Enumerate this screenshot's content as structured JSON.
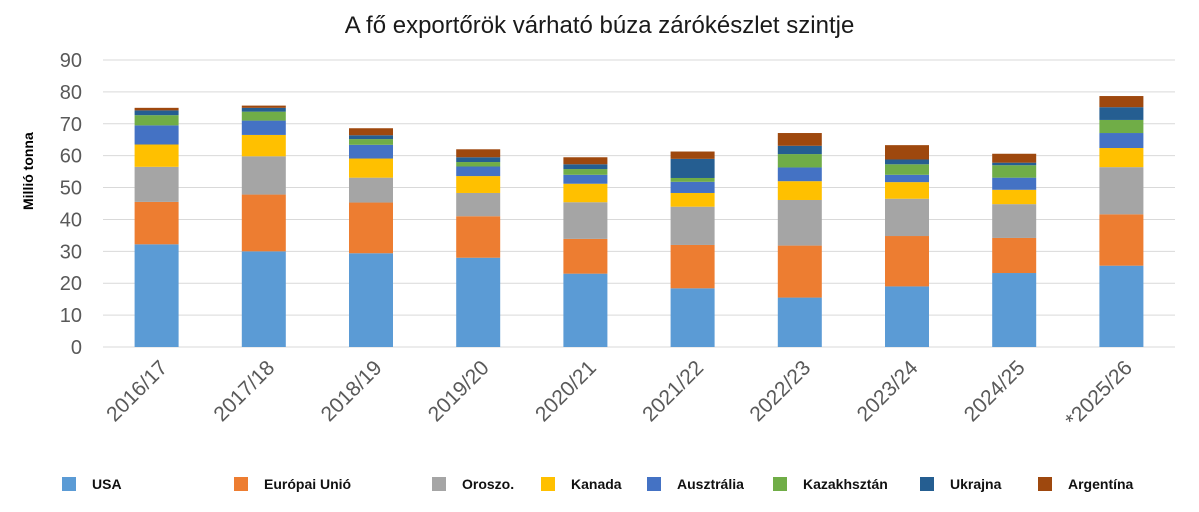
{
  "chart_data": {
    "type": "bar",
    "stacked": true,
    "title": "A fő exportőrök várható búza zárókészlet szintje",
    "xlabel": "",
    "ylabel": "Millió tonna",
    "ylim": [
      0,
      90
    ],
    "yticks": [
      0,
      10,
      20,
      30,
      40,
      50,
      60,
      70,
      80,
      90
    ],
    "grid": true,
    "legend_position": "bottom",
    "categories": [
      "2016/17",
      "2017/18",
      "2018/19",
      "2019/20",
      "2020/21",
      "2021/22",
      "2022/23",
      "2023/24",
      "2024/25",
      "*2025/26"
    ],
    "series": [
      {
        "name": "USA",
        "color": "#5b9bd5",
        "values": [
          32.2,
          30.0,
          29.4,
          28.0,
          23.0,
          18.4,
          15.5,
          19.0,
          23.2,
          25.5
        ]
      },
      {
        "name": "Európai Unió",
        "color": "#ed7d31",
        "values": [
          13.3,
          17.8,
          15.9,
          13.0,
          10.9,
          13.6,
          16.3,
          15.8,
          11.0,
          16.1
        ]
      },
      {
        "name": "Oroszo.",
        "color": "#a5a5a5",
        "values": [
          11.0,
          12.0,
          7.8,
          7.3,
          11.5,
          12.0,
          14.3,
          11.7,
          10.6,
          14.8
        ]
      },
      {
        "name": "Kanada",
        "color": "#ffc000",
        "values": [
          7.0,
          6.7,
          6.0,
          5.3,
          5.8,
          4.3,
          5.9,
          5.2,
          4.5,
          6.0
        ]
      },
      {
        "name": "Ausztrália",
        "color": "#4472c4",
        "values": [
          6.0,
          4.5,
          4.3,
          3.0,
          2.8,
          3.5,
          4.3,
          2.3,
          3.8,
          4.7
        ]
      },
      {
        "name": "Kazakhsztán",
        "color": "#70ad47",
        "values": [
          3.2,
          2.8,
          1.8,
          1.4,
          1.8,
          1.2,
          4.2,
          3.3,
          3.9,
          4.1
        ]
      },
      {
        "name": "Ukrajna",
        "color": "#255e91",
        "values": [
          1.5,
          1.2,
          1.2,
          1.5,
          1.5,
          6.0,
          2.6,
          1.5,
          0.8,
          4.0
        ]
      },
      {
        "name": "Argentína",
        "color": "#9e480e",
        "values": [
          0.8,
          0.7,
          2.2,
          2.5,
          2.2,
          2.3,
          4.0,
          4.5,
          2.8,
          3.5
        ]
      }
    ]
  }
}
